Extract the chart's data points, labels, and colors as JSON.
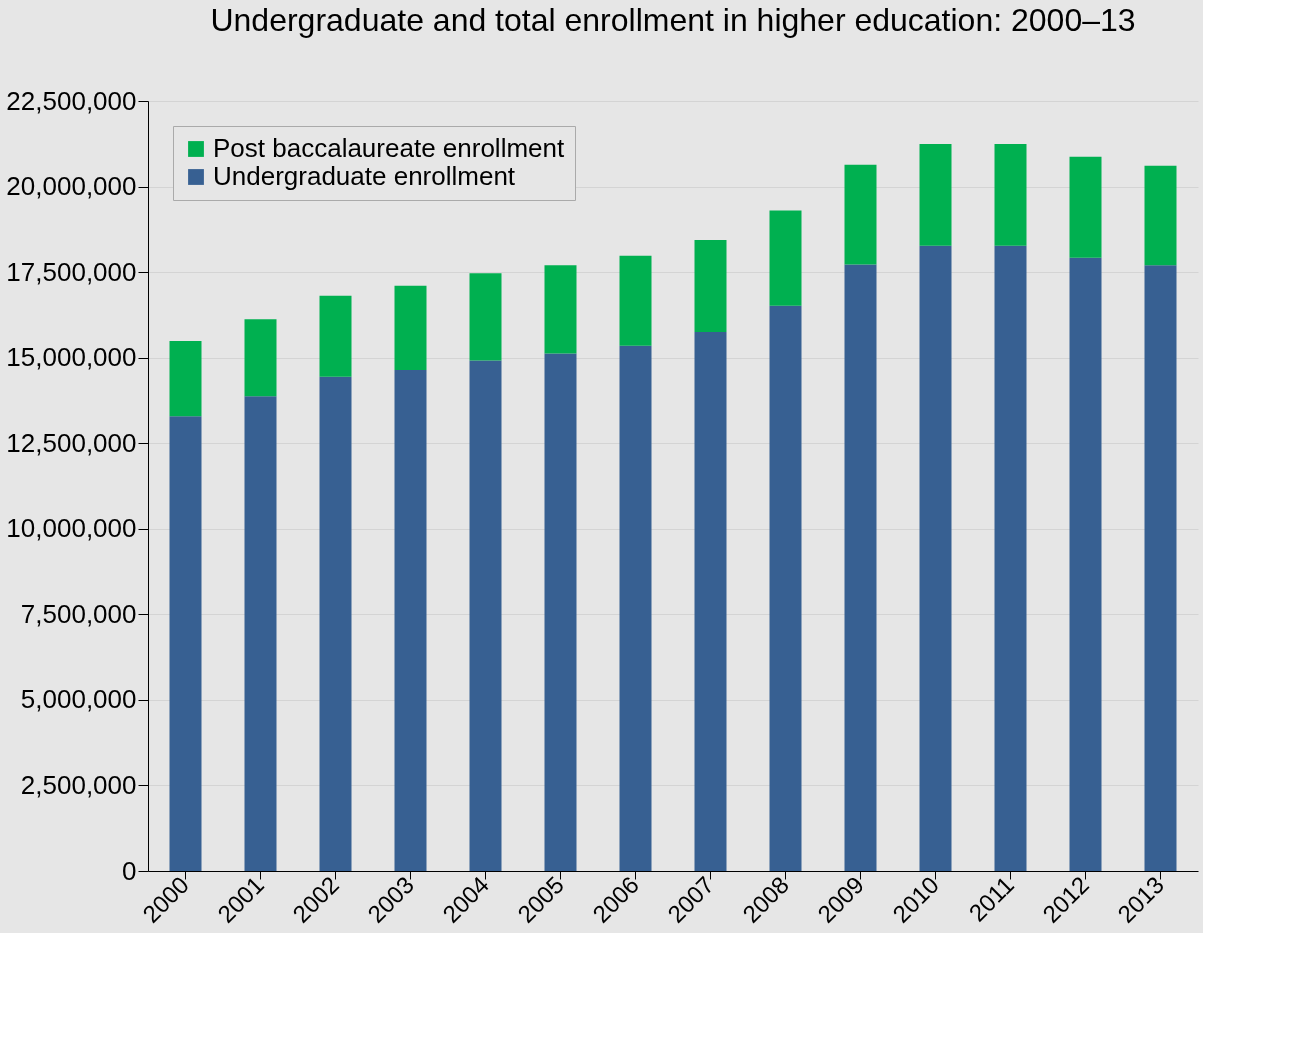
{
  "chart_data": {
    "type": "bar",
    "title": "Undergraduate and total enrollment in higher education: 2000–13",
    "categories": [
      "2000",
      "2001",
      "2002",
      "2003",
      "2004",
      "2005",
      "2006",
      "2007",
      "2008",
      "2009",
      "2010",
      "2011",
      "2012",
      "2013"
    ],
    "stacked": true,
    "series": [
      {
        "name": "Undergraduate enrollment",
        "color": "#376092",
        "values": [
          13290000,
          13870000,
          14440000,
          14640000,
          14920000,
          15120000,
          15350000,
          15750000,
          16520000,
          17720000,
          18270000,
          18270000,
          17920000,
          17700000
        ]
      },
      {
        "name": "Post baccalaureate enrollment",
        "color": "#00b050",
        "values": [
          2200000,
          2250000,
          2370000,
          2460000,
          2550000,
          2580000,
          2630000,
          2690000,
          2780000,
          2920000,
          2970000,
          2970000,
          2950000,
          2910000
        ]
      }
    ],
    "ylim": [
      0,
      22500000
    ],
    "yticks": [
      0,
      {
        "value": 2500000,
        "label": "2,500,000"
      },
      {
        "value": 5000000,
        "label": "5,000,000"
      },
      {
        "value": 7500000,
        "label": "7,500,000"
      },
      {
        "value": 10000000,
        "label": "10,000,000"
      },
      {
        "value": 12500000,
        "label": "12,500,000"
      },
      {
        "value": 15000000,
        "label": "15,000,000"
      },
      {
        "value": 17500000,
        "label": "17,500,000"
      },
      {
        "value": 20000000,
        "label": "20,000,000"
      },
      {
        "value": 22500000,
        "label": "22,500,000"
      }
    ],
    "grid": "y",
    "legend": "top left"
  }
}
